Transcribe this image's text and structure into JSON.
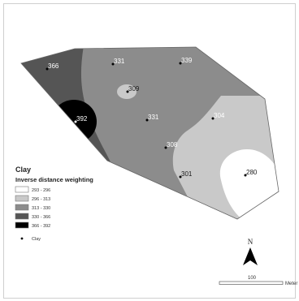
{
  "legend": {
    "title": "Clay",
    "subtitle": "Inverse distance weighting",
    "classes": [
      {
        "label": "293 - 296",
        "color": "#ffffff"
      },
      {
        "label": "296 - 313",
        "color": "#c9c9c9"
      },
      {
        "label": "313 - 330",
        "color": "#8c8c8c"
      },
      {
        "label": "330 - 366",
        "color": "#555555"
      },
      {
        "label": "366 - 392",
        "color": "#000000"
      }
    ],
    "point_label": "Clay"
  },
  "points": [
    {
      "value": "366"
    },
    {
      "value": "331"
    },
    {
      "value": "339"
    },
    {
      "value": "309"
    },
    {
      "value": "392"
    },
    {
      "value": "331"
    },
    {
      "value": "304"
    },
    {
      "value": "308"
    },
    {
      "value": "301"
    },
    {
      "value": "280"
    }
  ],
  "north_arrow": {
    "letter": "N"
  },
  "scale_bar": {
    "value": "100",
    "unit": "Meter"
  }
}
